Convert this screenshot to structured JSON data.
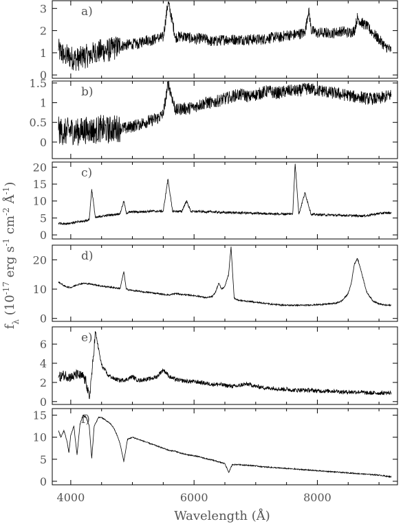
{
  "figure": {
    "xlabel": "Wavelength (Å)",
    "ylabel": "f_λ (10^-17 erg s^-1 cm^-2 Å^-1)",
    "xlim": [
      3700,
      9300
    ],
    "x_ticks": [
      4000,
      6000,
      8000
    ]
  },
  "chart_data": [
    {
      "type": "line",
      "label": "a)",
      "ylim": [
        -0.15,
        3.35
      ],
      "y_ticks": [
        0,
        1,
        2,
        3
      ],
      "series": [
        {
          "x": [
            3800,
            3900,
            4000,
            4100,
            4200,
            4300,
            4400,
            4500,
            4600,
            4700,
            4800,
            4900,
            5000,
            5100,
            5200,
            5300,
            5400,
            5500,
            5580,
            5700,
            5800,
            5900,
            6000,
            6100,
            6200,
            6300,
            6400,
            6500,
            6600,
            6700,
            6800,
            6900,
            7000,
            7100,
            7200,
            7300,
            7400,
            7500,
            7600,
            7700,
            7800,
            7860,
            7900,
            8000,
            8100,
            8200,
            8300,
            8400,
            8500,
            8600,
            8650,
            8700,
            8800,
            8900,
            9000,
            9100,
            9200
          ],
          "y": [
            1.1,
            0.9,
            0.8,
            0.7,
            0.8,
            0.9,
            1.0,
            1.1,
            1.1,
            1.2,
            1.3,
            1.35,
            1.4,
            1.4,
            1.6,
            1.55,
            1.65,
            1.7,
            3.3,
            1.7,
            1.75,
            1.7,
            1.6,
            1.65,
            1.6,
            1.5,
            1.55,
            1.6,
            1.6,
            1.6,
            1.6,
            1.6,
            1.6,
            1.6,
            1.65,
            1.7,
            1.7,
            1.8,
            1.8,
            1.85,
            1.9,
            3.0,
            2.0,
            1.9,
            1.9,
            1.9,
            1.9,
            2.0,
            1.9,
            2.0,
            2.6,
            2.4,
            2.2,
            1.9,
            1.6,
            1.3,
            1.1
          ]
        }
      ]
    },
    {
      "type": "line",
      "label": "b)",
      "ylim": [
        -0.42,
        1.55
      ],
      "y_ticks": [
        0,
        0.5,
        1,
        1.5
      ],
      "series": [
        {
          "x": [
            3800,
            3900,
            4000,
            4100,
            4200,
            4300,
            4400,
            4500,
            4600,
            4700,
            4800,
            4900,
            5000,
            5100,
            5200,
            5300,
            5400,
            5500,
            5580,
            5700,
            5800,
            5900,
            6000,
            6100,
            6200,
            6300,
            6400,
            6500,
            6600,
            6700,
            6800,
            6900,
            7000,
            7100,
            7200,
            7300,
            7400,
            7500,
            7600,
            7700,
            7800,
            7900,
            8000,
            8100,
            8200,
            8300,
            8400,
            8500,
            8600,
            8700,
            8800,
            8900,
            9000,
            9100,
            9200
          ],
          "y": [
            0.3,
            0.25,
            0.3,
            0.25,
            0.3,
            0.3,
            0.3,
            0.35,
            0.3,
            0.35,
            0.35,
            0.35,
            0.4,
            0.45,
            0.5,
            0.55,
            0.6,
            0.7,
            1.5,
            0.8,
            0.85,
            0.85,
            0.9,
            0.95,
            1.0,
            1.0,
            1.05,
            1.1,
            1.15,
            1.2,
            1.2,
            1.15,
            1.2,
            1.25,
            1.3,
            1.25,
            1.25,
            1.3,
            1.3,
            1.3,
            1.35,
            1.35,
            1.3,
            1.3,
            1.25,
            1.25,
            1.2,
            1.2,
            1.15,
            1.15,
            1.1,
            1.1,
            1.1,
            1.15,
            1.2
          ]
        }
      ]
    },
    {
      "type": "line",
      "label": "c)",
      "ylim": [
        -1.2,
        21.5
      ],
      "y_ticks": [
        0,
        5,
        10,
        15,
        20
      ],
      "series": [
        {
          "x": [
            3800,
            3900,
            4000,
            4100,
            4200,
            4300,
            4340,
            4400,
            4500,
            4600,
            4700,
            4800,
            4861,
            4900,
            5000,
            5100,
            5200,
            5300,
            5400,
            5500,
            5577,
            5650,
            5800,
            5876,
            5950,
            6100,
            6200,
            6300,
            6400,
            6500,
            6600,
            6700,
            6800,
            6900,
            7000,
            7100,
            7200,
            7300,
            7400,
            7500,
            7600,
            7640,
            7700,
            7800,
            7900,
            8000,
            8100,
            8200,
            8300,
            8400,
            8500,
            8600,
            8700,
            8800,
            8900,
            9000,
            9100,
            9200
          ],
          "y": [
            3.5,
            3.3,
            3.5,
            3.8,
            4.0,
            4.5,
            13.5,
            5.0,
            5.5,
            5.8,
            6.0,
            6.3,
            10.0,
            6.5,
            6.8,
            6.8,
            6.9,
            7.0,
            7.0,
            7.0,
            16.5,
            7.0,
            6.9,
            10.0,
            6.9,
            6.9,
            6.8,
            6.8,
            6.7,
            6.6,
            6.6,
            6.5,
            6.5,
            6.4,
            6.4,
            6.3,
            6.3,
            6.2,
            6.2,
            6.2,
            6.2,
            21.0,
            6.1,
            12.5,
            6.0,
            6.0,
            5.9,
            5.9,
            5.8,
            5.8,
            5.7,
            5.7,
            5.6,
            5.7,
            6.0,
            6.3,
            6.5,
            6.5
          ]
        }
      ]
    },
    {
      "type": "line",
      "label": "d)",
      "ylim": [
        -1.0,
        25.0
      ],
      "y_ticks": [
        0,
        10,
        20
      ],
      "series": [
        {
          "x": [
            3800,
            3900,
            4000,
            4100,
            4200,
            4300,
            4400,
            4500,
            4600,
            4700,
            4800,
            4861,
            4900,
            5000,
            5100,
            5200,
            5300,
            5400,
            5500,
            5600,
            5700,
            5800,
            5900,
            6000,
            6100,
            6200,
            6300,
            6350,
            6400,
            6450,
            6500,
            6560,
            6600,
            6650,
            6700,
            6800,
            6900,
            7000,
            7100,
            7200,
            7300,
            7400,
            7500,
            7600,
            7700,
            7800,
            7900,
            8000,
            8100,
            8200,
            8300,
            8400,
            8500,
            8550,
            8600,
            8650,
            8700,
            8750,
            8800,
            8900,
            9000,
            9100,
            9200
          ],
          "y": [
            12.5,
            11.0,
            10.5,
            11.5,
            12.0,
            11.8,
            11.5,
            11.0,
            10.8,
            10.5,
            10.2,
            16.0,
            10.0,
            9.5,
            9.3,
            9.0,
            8.8,
            8.5,
            8.2,
            8.0,
            8.5,
            8.2,
            8.0,
            7.8,
            7.5,
            7.0,
            7.5,
            9.0,
            12.0,
            10.0,
            11.0,
            15.0,
            24.5,
            7.0,
            6.3,
            6.0,
            5.8,
            5.5,
            5.3,
            5.0,
            4.8,
            4.6,
            4.5,
            4.5,
            4.5,
            4.5,
            4.6,
            4.7,
            4.8,
            5.0,
            5.2,
            6.0,
            8.5,
            12.0,
            18.5,
            20.5,
            17.0,
            13.0,
            9.0,
            6.0,
            5.0,
            4.5,
            4.5
          ]
        }
      ]
    },
    {
      "type": "line",
      "label": "e)",
      "ylim": [
        -0.3,
        7.8
      ],
      "y_ticks": [
        0,
        2,
        4,
        6
      ],
      "series": [
        {
          "x": [
            3800,
            3900,
            4000,
            4100,
            4200,
            4250,
            4300,
            4350,
            4400,
            4450,
            4500,
            4600,
            4700,
            4800,
            4900,
            5000,
            5100,
            5200,
            5300,
            5400,
            5450,
            5500,
            5550,
            5600,
            5700,
            5800,
            5900,
            6000,
            6100,
            6200,
            6300,
            6400,
            6500,
            6600,
            6700,
            6800,
            6900,
            7000,
            7100,
            7200,
            7300,
            7400,
            7500,
            7600,
            7700,
            7800,
            7900,
            8000,
            8100,
            8200,
            8300,
            8400,
            8500,
            8600,
            8700,
            8800,
            8900,
            9000,
            9100,
            9200
          ],
          "y": [
            2.5,
            2.8,
            2.5,
            2.8,
            2.6,
            2.0,
            0.3,
            3.5,
            7.3,
            5.5,
            3.8,
            2.8,
            2.4,
            2.2,
            2.3,
            2.6,
            2.2,
            2.3,
            2.4,
            2.6,
            3.0,
            3.3,
            3.0,
            2.6,
            2.3,
            2.2,
            2.1,
            2.1,
            2.0,
            1.9,
            1.8,
            1.8,
            1.7,
            1.6,
            1.6,
            1.8,
            1.8,
            1.6,
            1.5,
            1.4,
            1.4,
            1.3,
            1.3,
            1.2,
            1.2,
            1.2,
            1.2,
            1.1,
            1.1,
            1.1,
            1.1,
            1.0,
            1.0,
            1.0,
            1.0,
            0.9,
            0.9,
            0.9,
            0.9,
            0.9
          ]
        }
      ]
    },
    {
      "type": "line",
      "label": "f)",
      "ylim": [
        -0.8,
        16.5
      ],
      "y_ticks": [
        0,
        5,
        10,
        15
      ],
      "series": [
        {
          "x": [
            3800,
            3840,
            3890,
            3940,
            3970,
            4000,
            4050,
            4102,
            4150,
            4200,
            4250,
            4300,
            4340,
            4380,
            4450,
            4500,
            4550,
            4600,
            4650,
            4700,
            4750,
            4800,
            4861,
            4920,
            5000,
            5100,
            5200,
            5300,
            5400,
            5500,
            5600,
            5700,
            5800,
            5900,
            6000,
            6100,
            6200,
            6300,
            6400,
            6500,
            6563,
            6620,
            6700,
            6800,
            6900,
            7000,
            7100,
            7200,
            7300,
            7400,
            7500,
            7600,
            7700,
            7800,
            7900,
            8000,
            8100,
            8200,
            8300,
            8400,
            8500,
            8600,
            8700,
            8800,
            8900,
            9000,
            9100,
            9200
          ],
          "y": [
            11.5,
            10.0,
            11.5,
            9.0,
            6.5,
            10.5,
            12.5,
            6.0,
            13.0,
            15.0,
            14.5,
            12.5,
            5.2,
            12.5,
            14.5,
            14.5,
            14.0,
            13.5,
            13.0,
            12.0,
            10.5,
            8.5,
            4.5,
            9.5,
            10.0,
            9.5,
            9.0,
            8.5,
            8.0,
            7.5,
            7.0,
            6.8,
            6.3,
            6.0,
            5.8,
            5.5,
            5.1,
            4.8,
            4.4,
            4.0,
            2.0,
            3.8,
            3.8,
            3.7,
            3.6,
            3.5,
            3.3,
            3.2,
            3.1,
            3.0,
            2.9,
            2.8,
            2.7,
            2.6,
            2.5,
            2.4,
            2.3,
            2.2,
            2.1,
            2.0,
            1.9,
            1.8,
            1.7,
            1.6,
            1.5,
            1.4,
            1.2,
            1.0
          ]
        }
      ]
    }
  ]
}
